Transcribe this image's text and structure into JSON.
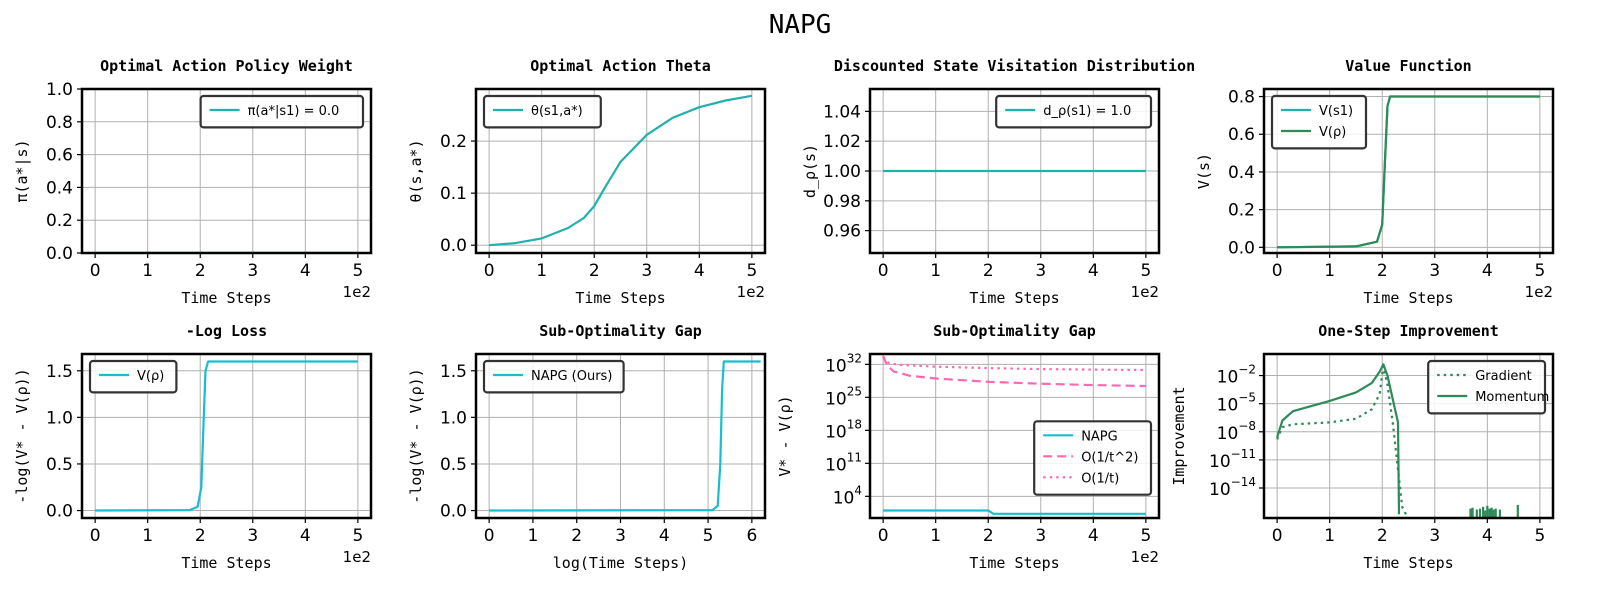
{
  "suptitle": "NAPG",
  "colors": {
    "teal": "#20b2aa",
    "cyan": "#17becf",
    "green": "#2e8b57",
    "pink": "#ff69b4"
  },
  "chart_data": [
    {
      "type": "line",
      "title": "Optimal Action Policy Weight",
      "xlabel": "Time Steps",
      "ylabel": "π(a*|s)",
      "x_offset_label": "1e2",
      "xlim": [
        -0.25,
        5.25
      ],
      "ylim": [
        0,
        1.0
      ],
      "xticks": [
        0,
        1,
        2,
        3,
        4,
        5
      ],
      "yticks": [
        0.0,
        0.2,
        0.4,
        0.6,
        0.8,
        1.0
      ],
      "ytick_labels": [
        "0.0",
        "0.2",
        "0.4",
        "0.6",
        "0.8",
        "1.0"
      ],
      "legend": "upper right",
      "series": [
        {
          "name": "π(a*|s1) = 0.0",
          "color": "#20b2aa",
          "style": "solid",
          "points": [
            [
              0,
              0.0
            ],
            [
              5,
              0.0
            ]
          ]
        }
      ]
    },
    {
      "type": "line",
      "title": "Optimal Action Theta",
      "xlabel": "Time Steps",
      "ylabel": "θ(s,a*)",
      "x_offset_label": "1e2",
      "xlim": [
        -0.25,
        5.25
      ],
      "ylim": [
        -0.015,
        0.3
      ],
      "xticks": [
        0,
        1,
        2,
        3,
        4,
        5
      ],
      "yticks": [
        0.0,
        0.1,
        0.2
      ],
      "ytick_labels": [
        "0.0",
        "0.1",
        "0.2"
      ],
      "legend": "upper left",
      "series": [
        {
          "name": "θ(s1,a*)",
          "color": "#20b2aa",
          "style": "solid",
          "points": [
            [
              0,
              0.0
            ],
            [
              0.5,
              0.004
            ],
            [
              1.0,
              0.013
            ],
            [
              1.5,
              0.033
            ],
            [
              1.8,
              0.052
            ],
            [
              2.0,
              0.075
            ],
            [
              2.2,
              0.11
            ],
            [
              2.5,
              0.16
            ],
            [
              3.0,
              0.212
            ],
            [
              3.5,
              0.245
            ],
            [
              4.0,
              0.265
            ],
            [
              4.5,
              0.278
            ],
            [
              5.0,
              0.287
            ]
          ]
        }
      ]
    },
    {
      "type": "line",
      "title": "Discounted State Visitation Distribution",
      "xlabel": "Time Steps",
      "ylabel": "d_ρ(s)",
      "x_offset_label": "1e2",
      "xlim": [
        -0.25,
        5.25
      ],
      "ylim": [
        0.945,
        1.055
      ],
      "xticks": [
        0,
        1,
        2,
        3,
        4,
        5
      ],
      "yticks": [
        0.96,
        0.98,
        1.0,
        1.02,
        1.04
      ],
      "ytick_labels": [
        "0.96",
        "0.98",
        "1.00",
        "1.02",
        "1.04"
      ],
      "legend": "upper right",
      "series": [
        {
          "name": "d_ρ(s1) = 1.0",
          "color": "#20b2aa",
          "style": "solid",
          "points": [
            [
              0,
              1.0
            ],
            [
              5,
              1.0
            ]
          ]
        }
      ]
    },
    {
      "type": "line",
      "title": "Value Function",
      "xlabel": "Time Steps",
      "ylabel": "V(s)",
      "x_offset_label": "1e2",
      "xlim": [
        -0.25,
        5.25
      ],
      "ylim": [
        -0.03,
        0.84
      ],
      "xticks": [
        0,
        1,
        2,
        3,
        4,
        5
      ],
      "yticks": [
        0.0,
        0.2,
        0.4,
        0.6,
        0.8
      ],
      "ytick_labels": [
        "0.0",
        "0.2",
        "0.4",
        "0.6",
        "0.8"
      ],
      "legend": "upper left",
      "series": [
        {
          "name": "V(s1)",
          "color": "#20b2aa",
          "style": "solid",
          "points": [
            [
              0,
              0.0
            ],
            [
              1.5,
              0.005
            ],
            [
              1.9,
              0.03
            ],
            [
              2.0,
              0.12
            ],
            [
              2.05,
              0.45
            ],
            [
              2.1,
              0.75
            ],
            [
              2.15,
              0.8
            ],
            [
              5,
              0.8
            ]
          ]
        },
        {
          "name": "V(ρ)",
          "color": "#2e8b57",
          "style": "solid",
          "points": [
            [
              0,
              0.0
            ],
            [
              1.5,
              0.005
            ],
            [
              1.9,
              0.03
            ],
            [
              2.0,
              0.12
            ],
            [
              2.05,
              0.45
            ],
            [
              2.1,
              0.75
            ],
            [
              2.15,
              0.8
            ],
            [
              5,
              0.8
            ]
          ]
        }
      ]
    },
    {
      "type": "line",
      "title": "-Log Loss",
      "xlabel": "Time Steps",
      "ylabel": "-log(V* - V(ρ))",
      "x_offset_label": "1e2",
      "xlim": [
        -0.25,
        5.25
      ],
      "ylim": [
        -0.08,
        1.68
      ],
      "xticks": [
        0,
        1,
        2,
        3,
        4,
        5
      ],
      "yticks": [
        0.0,
        0.5,
        1.0,
        1.5
      ],
      "ytick_labels": [
        "0.0",
        "0.5",
        "1.0",
        "1.5"
      ],
      "legend": "upper left",
      "series": [
        {
          "name": "V(ρ)",
          "color": "#17becf",
          "style": "solid",
          "points": [
            [
              0,
              0.0
            ],
            [
              1.8,
              0.005
            ],
            [
              1.95,
              0.04
            ],
            [
              2.02,
              0.25
            ],
            [
              2.06,
              0.9
            ],
            [
              2.1,
              1.5
            ],
            [
              2.15,
              1.6
            ],
            [
              5,
              1.6
            ]
          ]
        }
      ]
    },
    {
      "type": "line",
      "title": "Sub-Optimality Gap",
      "xlabel": "log(Time Steps)",
      "ylabel": "-log(V* - V(ρ))",
      "xlim": [
        -0.3,
        6.3
      ],
      "ylim": [
        -0.08,
        1.68
      ],
      "xticks": [
        0,
        1,
        2,
        3,
        4,
        5,
        6
      ],
      "yticks": [
        0.0,
        0.5,
        1.0,
        1.5
      ],
      "ytick_labels": [
        "0.0",
        "0.5",
        "1.0",
        "1.5"
      ],
      "legend": "upper left",
      "series": [
        {
          "name": "NAPG (Ours)",
          "color": "#17becf",
          "style": "solid",
          "points": [
            [
              0,
              0.0
            ],
            [
              5.1,
              0.005
            ],
            [
              5.22,
              0.05
            ],
            [
              5.28,
              0.5
            ],
            [
              5.32,
              1.3
            ],
            [
              5.36,
              1.6
            ],
            [
              6.2,
              1.6
            ]
          ]
        }
      ]
    },
    {
      "type": "line",
      "title": "Sub-Optimality Gap",
      "y_scale": "log",
      "xlabel": "Time Steps",
      "ylabel": "V* - V(ρ)",
      "x_offset_label": "1e2",
      "xlim": [
        -0.25,
        5.25
      ],
      "ylim_log10": [
        -0.6,
        34.2
      ],
      "xticks": [
        0,
        1,
        2,
        3,
        4,
        5
      ],
      "yticks_log10": [
        4,
        11,
        18,
        25,
        32
      ],
      "ytick_bases": [
        "10",
        "10",
        "10",
        "10",
        "10"
      ],
      "ytick_exps": [
        "4",
        "11",
        "18",
        "25",
        "32"
      ],
      "legend": "center right",
      "series": [
        {
          "name": "NAPG",
          "color": "#17becf",
          "style": "solid",
          "log10_points": [
            [
              0,
              1.0
            ],
            [
              2.0,
              1.0
            ],
            [
              2.1,
              0.3
            ],
            [
              5,
              0.3
            ]
          ]
        },
        {
          "name": "O(1/t^2)",
          "color": "#ff69b4",
          "style": "dashed",
          "log10_points": [
            [
              0,
              33.8
            ],
            [
              0.05,
              32.4
            ],
            [
              0.1,
              31.5
            ],
            [
              0.2,
              30.5
            ],
            [
              0.5,
              29.6
            ],
            [
              1.0,
              29.0
            ],
            [
              2.0,
              28.3
            ],
            [
              3.0,
              27.9
            ],
            [
              4.0,
              27.6
            ],
            [
              5.0,
              27.4
            ]
          ]
        },
        {
          "name": "O(1/t)",
          "color": "#ff69b4",
          "style": "dotted",
          "log10_points": [
            [
              0,
              33.5
            ],
            [
              0.05,
              32.8
            ],
            [
              0.1,
              32.3
            ],
            [
              0.3,
              31.9
            ],
            [
              1.0,
              31.5
            ],
            [
              2.0,
              31.2
            ],
            [
              3.0,
              31.0
            ],
            [
              4.0,
              30.9
            ],
            [
              5.0,
              30.8
            ]
          ]
        }
      ]
    },
    {
      "type": "line",
      "title": "One-Step Improvement",
      "y_scale": "log",
      "xlabel": "Time Steps",
      "ylabel": "Improvement",
      "xlim": [
        -0.25,
        5.25
      ],
      "ylim_log10": [
        -17.2,
        0.3
      ],
      "xticks": [
        0,
        1,
        2,
        3,
        4,
        5
      ],
      "yticks_log10": [
        -2,
        -5,
        -8,
        -11,
        -14
      ],
      "ytick_bases": [
        "10",
        "10",
        "10",
        "10",
        "10"
      ],
      "ytick_exps": [
        "−2",
        "−5",
        "−8",
        "−11",
        "−14"
      ],
      "legend": "upper right",
      "series": [
        {
          "name": "Gradient",
          "color": "#2e8b57",
          "style": "dotted",
          "log10_points": [
            [
              0,
              -8.8
            ],
            [
              0.1,
              -7.5
            ],
            [
              0.3,
              -7.2
            ],
            [
              1.0,
              -7.0
            ],
            [
              1.5,
              -6.6
            ],
            [
              1.8,
              -5.6
            ],
            [
              1.95,
              -4.0
            ],
            [
              2.02,
              -1.0
            ],
            [
              2.1,
              -3.0
            ],
            [
              2.2,
              -7.0
            ],
            [
              2.3,
              -12.0
            ],
            [
              2.38,
              -16.0
            ],
            [
              2.45,
              -16.8
            ]
          ]
        },
        {
          "name": "Momentum",
          "color": "#2e8b57",
          "style": "solid",
          "log10_points": [
            [
              0,
              -8.6
            ],
            [
              0.1,
              -6.8
            ],
            [
              0.3,
              -5.8
            ],
            [
              1.0,
              -4.7
            ],
            [
              1.5,
              -3.8
            ],
            [
              1.8,
              -2.8
            ],
            [
              1.95,
              -1.6
            ],
            [
              2.02,
              -0.8
            ],
            [
              2.1,
              -2.0
            ],
            [
              2.2,
              -4.5
            ],
            [
              2.3,
              -7.0
            ],
            [
              2.32,
              -16.8
            ]
          ]
        }
      ],
      "spikes_series": "Momentum",
      "spikes": [
        [
          3.68,
          -16.2
        ],
        [
          3.72,
          -16.1
        ],
        [
          3.8,
          -16.3
        ],
        [
          3.86,
          -16.2
        ],
        [
          3.92,
          -16.0
        ],
        [
          3.96,
          -16.4
        ],
        [
          4.0,
          -15.9
        ],
        [
          4.04,
          -16.2
        ],
        [
          4.08,
          -16.1
        ],
        [
          4.12,
          -16.3
        ],
        [
          4.16,
          -16.2
        ],
        [
          4.24,
          -16.3
        ],
        [
          4.58,
          -15.8
        ]
      ]
    }
  ]
}
